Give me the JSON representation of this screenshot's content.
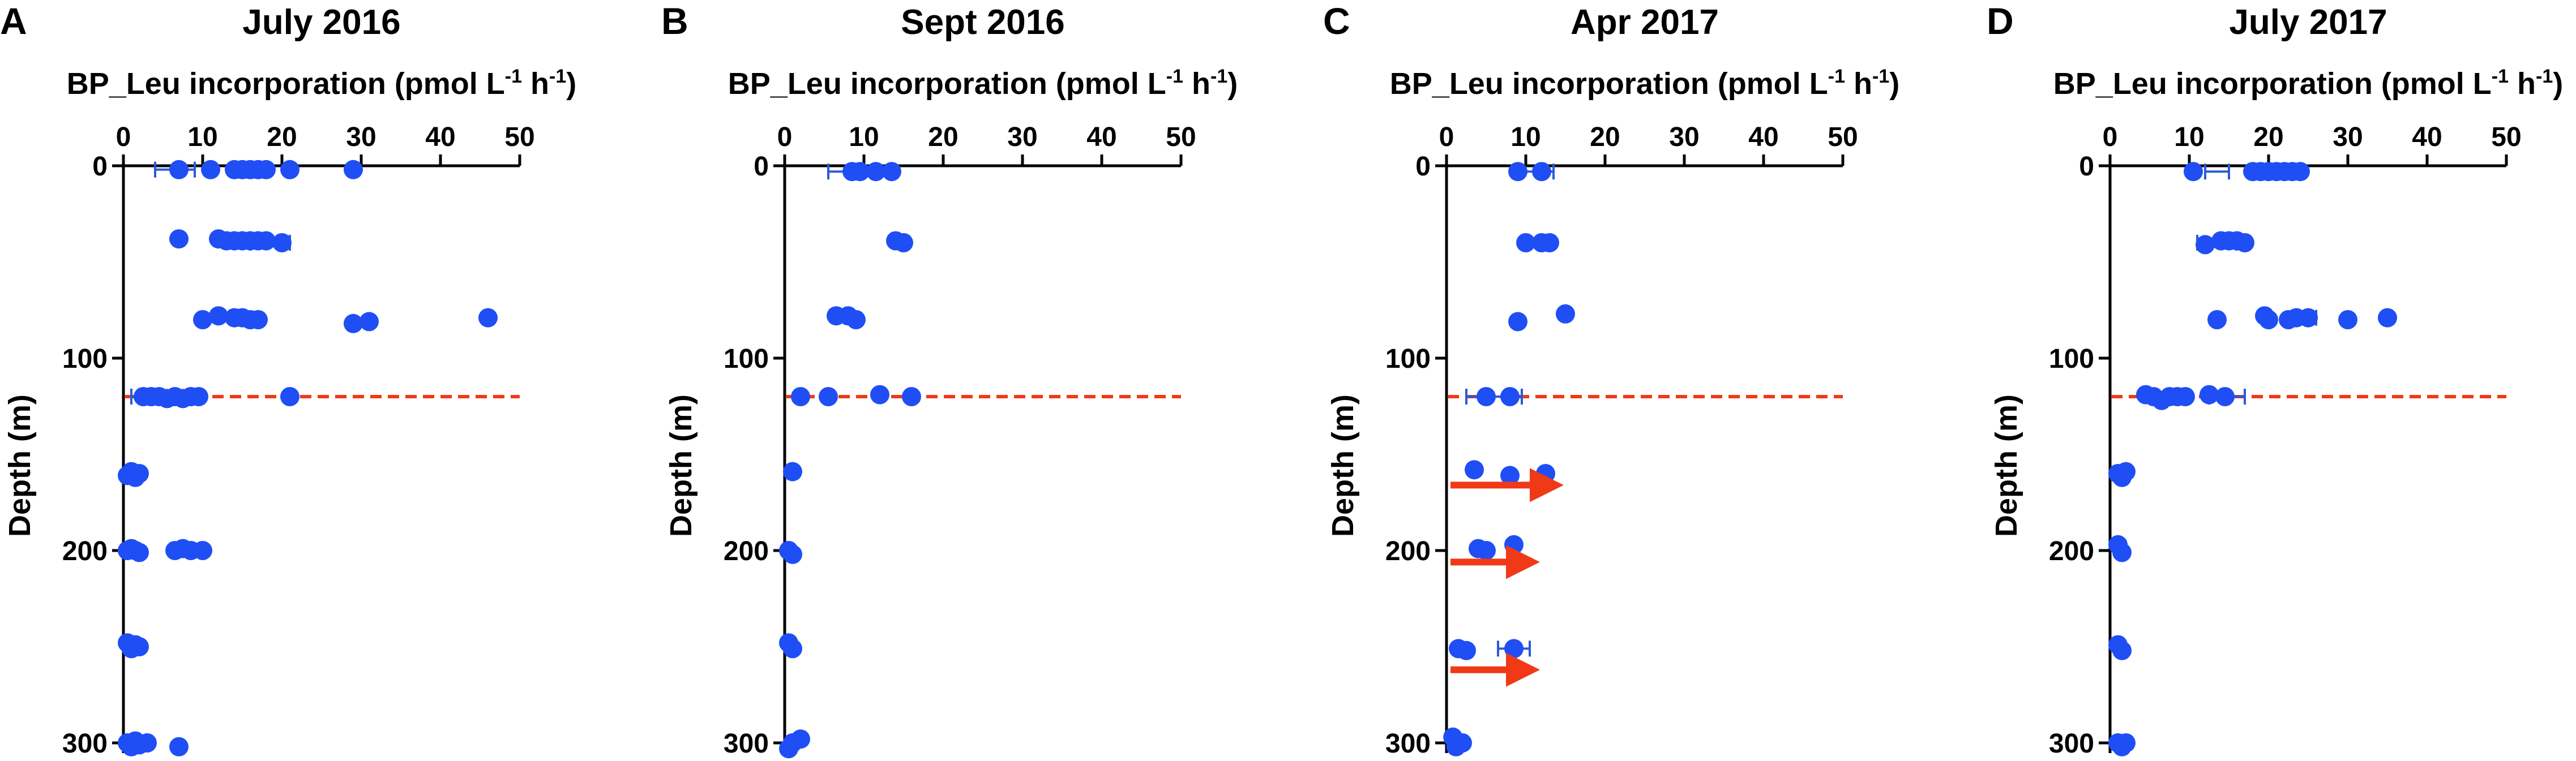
{
  "figure_colors": {
    "point": "#1f4ef5",
    "error_bar": "#2b5ad6",
    "threshold_line": "#f03a17",
    "arrow": "#f03a17",
    "axis": "#000000"
  },
  "chart_data": [
    {
      "panel": "A",
      "title": "July 2016",
      "type": "scatter",
      "xlabel": {
        "main": "BP_Leu incorporation (pmol L",
        "sup1": "-1",
        "mid": " h",
        "sup2": "-1",
        "end": ")"
      },
      "ylabel": "Depth (m)",
      "xlim": [
        0,
        50
      ],
      "ylim": [
        0,
        300
      ],
      "xticks": [
        0,
        10,
        20,
        30,
        40,
        50
      ],
      "yticks": [
        0,
        100,
        200,
        300
      ],
      "reference_line_depth": 120,
      "points": [
        {
          "x": 7,
          "y": 2
        },
        {
          "x": 11,
          "y": 2
        },
        {
          "x": 14,
          "y": 2
        },
        {
          "x": 15,
          "y": 2
        },
        {
          "x": 16,
          "y": 2
        },
        {
          "x": 17,
          "y": 2
        },
        {
          "x": 18,
          "y": 2
        },
        {
          "x": 21,
          "y": 2
        },
        {
          "x": 29,
          "y": 2
        },
        {
          "x": 7,
          "y": 38
        },
        {
          "x": 12,
          "y": 38
        },
        {
          "x": 13,
          "y": 39
        },
        {
          "x": 14,
          "y": 39
        },
        {
          "x": 15,
          "y": 39
        },
        {
          "x": 16,
          "y": 39
        },
        {
          "x": 17,
          "y": 39
        },
        {
          "x": 18,
          "y": 39
        },
        {
          "x": 20,
          "y": 40
        },
        {
          "x": 10,
          "y": 80
        },
        {
          "x": 12,
          "y": 78
        },
        {
          "x": 14,
          "y": 79
        },
        {
          "x": 15,
          "y": 79
        },
        {
          "x": 16,
          "y": 80
        },
        {
          "x": 17,
          "y": 80
        },
        {
          "x": 29,
          "y": 82
        },
        {
          "x": 31,
          "y": 81
        },
        {
          "x": 46,
          "y": 79
        },
        {
          "x": 2.5,
          "y": 120
        },
        {
          "x": 3.5,
          "y": 120
        },
        {
          "x": 4.5,
          "y": 120
        },
        {
          "x": 5.5,
          "y": 121
        },
        {
          "x": 6.5,
          "y": 120
        },
        {
          "x": 7.5,
          "y": 121
        },
        {
          "x": 8.5,
          "y": 120
        },
        {
          "x": 9.5,
          "y": 120
        },
        {
          "x": 21,
          "y": 120
        },
        {
          "x": 0.5,
          "y": 161
        },
        {
          "x": 1,
          "y": 159
        },
        {
          "x": 1.5,
          "y": 162
        },
        {
          "x": 2,
          "y": 160
        },
        {
          "x": 0.5,
          "y": 200
        },
        {
          "x": 1,
          "y": 199
        },
        {
          "x": 1.5,
          "y": 200
        },
        {
          "x": 2,
          "y": 201
        },
        {
          "x": 6.5,
          "y": 200
        },
        {
          "x": 7.5,
          "y": 199
        },
        {
          "x": 8.5,
          "y": 200
        },
        {
          "x": 10,
          "y": 200
        },
        {
          "x": 0.5,
          "y": 248
        },
        {
          "x": 1,
          "y": 251
        },
        {
          "x": 1.5,
          "y": 249
        },
        {
          "x": 2,
          "y": 250
        },
        {
          "x": 0.5,
          "y": 300
        },
        {
          "x": 1,
          "y": 302
        },
        {
          "x": 1.5,
          "y": 299
        },
        {
          "x": 2,
          "y": 301
        },
        {
          "x": 3,
          "y": 300
        },
        {
          "x": 7,
          "y": 302
        }
      ],
      "error_bars": [
        {
          "y": 2,
          "x_low": 4,
          "x_high": 9
        },
        {
          "y": 40,
          "x_low": 16,
          "x_high": 21
        },
        {
          "y": 120,
          "x_low": 1,
          "x_high": 9
        }
      ],
      "arrows": []
    },
    {
      "panel": "B",
      "title": "Sept 2016",
      "type": "scatter",
      "xlabel": {
        "main": "BP_Leu incorporation (pmol L",
        "sup1": "-1",
        "mid": " h",
        "sup2": "-1",
        "end": ")"
      },
      "ylabel": "Depth (m)",
      "xlim": [
        0,
        50
      ],
      "ylim": [
        0,
        300
      ],
      "xticks": [
        0,
        10,
        20,
        30,
        40,
        50
      ],
      "yticks": [
        0,
        100,
        200,
        300
      ],
      "reference_line_depth": 120,
      "points": [
        {
          "x": 8.5,
          "y": 3
        },
        {
          "x": 9.5,
          "y": 3
        },
        {
          "x": 11.5,
          "y": 3
        },
        {
          "x": 13.5,
          "y": 3
        },
        {
          "x": 14,
          "y": 39
        },
        {
          "x": 15,
          "y": 40
        },
        {
          "x": 6.5,
          "y": 78
        },
        {
          "x": 8,
          "y": 78
        },
        {
          "x": 9,
          "y": 80
        },
        {
          "x": 2,
          "y": 120
        },
        {
          "x": 5.5,
          "y": 120
        },
        {
          "x": 12,
          "y": 119
        },
        {
          "x": 16,
          "y": 120
        },
        {
          "x": 1,
          "y": 159
        },
        {
          "x": 0.5,
          "y": 200
        },
        {
          "x": 1,
          "y": 202
        },
        {
          "x": 0.5,
          "y": 248
        },
        {
          "x": 1,
          "y": 251
        },
        {
          "x": 0.5,
          "y": 303
        },
        {
          "x": 1,
          "y": 300
        },
        {
          "x": 2,
          "y": 298
        }
      ],
      "error_bars": [
        {
          "y": 3,
          "x_low": 5.5,
          "x_high": 12
        }
      ],
      "arrows": []
    },
    {
      "panel": "C",
      "title": "Apr 2017",
      "type": "scatter",
      "xlabel": {
        "main": "BP_Leu incorporation (pmol L",
        "sup1": "-1",
        "mid": " h",
        "sup2": "-1",
        "end": ")"
      },
      "ylabel": "Depth (m)",
      "xlim": [
        0,
        50
      ],
      "ylim": [
        0,
        300
      ],
      "xticks": [
        0,
        10,
        20,
        30,
        40,
        50
      ],
      "yticks": [
        0,
        100,
        200,
        300
      ],
      "reference_line_depth": 120,
      "points": [
        {
          "x": 9,
          "y": 3
        },
        {
          "x": 12,
          "y": 3
        },
        {
          "x": 10,
          "y": 40
        },
        {
          "x": 12,
          "y": 40
        },
        {
          "x": 13,
          "y": 40
        },
        {
          "x": 9,
          "y": 81
        },
        {
          "x": 15,
          "y": 77
        },
        {
          "x": 5,
          "y": 120
        },
        {
          "x": 8,
          "y": 120
        },
        {
          "x": 3.5,
          "y": 158
        },
        {
          "x": 8,
          "y": 161
        },
        {
          "x": 12.5,
          "y": 160
        },
        {
          "x": 4,
          "y": 199
        },
        {
          "x": 5,
          "y": 200
        },
        {
          "x": 8.5,
          "y": 197
        },
        {
          "x": 1.5,
          "y": 251
        },
        {
          "x": 2.5,
          "y": 252
        },
        {
          "x": 8.5,
          "y": 251
        },
        {
          "x": 0.8,
          "y": 297
        },
        {
          "x": 1.2,
          "y": 302
        },
        {
          "x": 2,
          "y": 300
        }
      ],
      "error_bars": [
        {
          "y": 3,
          "x_low": 9.5,
          "x_high": 13.5
        },
        {
          "y": 120,
          "x_low": 2.5,
          "x_high": 9.5
        },
        {
          "y": 251,
          "x_low": 6.5,
          "x_high": 10.5
        }
      ],
      "arrows": [
        {
          "y": 166,
          "x_start": 0.5,
          "x_end": 13.5
        },
        {
          "y": 206,
          "x_start": 0.5,
          "x_end": 10.5
        },
        {
          "y": 262,
          "x_start": 0.5,
          "x_end": 10.5
        }
      ]
    },
    {
      "panel": "D",
      "title": "July 2017",
      "type": "scatter",
      "xlabel": {
        "main": "BP_Leu incorporation (pmol L",
        "sup1": "-1",
        "mid": " h",
        "sup2": "-1",
        "end": ")"
      },
      "ylabel": "Depth (m)",
      "xlim": [
        0,
        50
      ],
      "ylim": [
        0,
        300
      ],
      "xticks": [
        0,
        10,
        20,
        30,
        40,
        50
      ],
      "yticks": [
        0,
        100,
        200,
        300
      ],
      "reference_line_depth": 120,
      "points": [
        {
          "x": 10.5,
          "y": 3
        },
        {
          "x": 18,
          "y": 3
        },
        {
          "x": 19,
          "y": 3
        },
        {
          "x": 20,
          "y": 3
        },
        {
          "x": 21,
          "y": 3
        },
        {
          "x": 22,
          "y": 3
        },
        {
          "x": 23,
          "y": 3
        },
        {
          "x": 24,
          "y": 3
        },
        {
          "x": 12,
          "y": 41
        },
        {
          "x": 14,
          "y": 39
        },
        {
          "x": 15,
          "y": 39
        },
        {
          "x": 16,
          "y": 39
        },
        {
          "x": 17,
          "y": 40
        },
        {
          "x": 13.5,
          "y": 80
        },
        {
          "x": 19.5,
          "y": 78
        },
        {
          "x": 20,
          "y": 80
        },
        {
          "x": 22.5,
          "y": 80
        },
        {
          "x": 23.5,
          "y": 79
        },
        {
          "x": 25,
          "y": 79
        },
        {
          "x": 30,
          "y": 80
        },
        {
          "x": 35,
          "y": 79
        },
        {
          "x": 4.5,
          "y": 119
        },
        {
          "x": 5.5,
          "y": 120
        },
        {
          "x": 6.5,
          "y": 122
        },
        {
          "x": 7.5,
          "y": 120
        },
        {
          "x": 8.5,
          "y": 120
        },
        {
          "x": 9.5,
          "y": 120
        },
        {
          "x": 12.5,
          "y": 119
        },
        {
          "x": 14.5,
          "y": 120
        },
        {
          "x": 1,
          "y": 160
        },
        {
          "x": 1.5,
          "y": 162
        },
        {
          "x": 2,
          "y": 159
        },
        {
          "x": 1,
          "y": 197
        },
        {
          "x": 1.5,
          "y": 201
        },
        {
          "x": 1,
          "y": 249
        },
        {
          "x": 1.5,
          "y": 252
        },
        {
          "x": 1,
          "y": 300
        },
        {
          "x": 1.5,
          "y": 302
        },
        {
          "x": 2,
          "y": 300
        }
      ],
      "error_bars": [
        {
          "y": 3,
          "x_low": 12,
          "x_high": 15
        },
        {
          "y": 40,
          "x_low": 11,
          "x_high": 16
        },
        {
          "y": 79,
          "x_low": 23,
          "x_high": 26
        },
        {
          "y": 120,
          "x_low": 12.5,
          "x_high": 17
        }
      ],
      "arrows": []
    }
  ]
}
